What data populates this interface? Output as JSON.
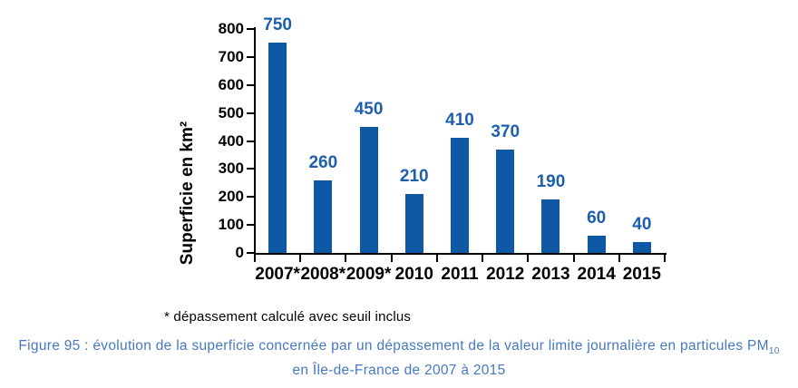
{
  "chart_data": {
    "type": "bar",
    "title": "",
    "categories": [
      "2007*",
      "2008*",
      "2009*",
      "2010",
      "2011",
      "2012",
      "2013",
      "2014",
      "2015"
    ],
    "values": [
      750,
      260,
      450,
      210,
      410,
      370,
      190,
      60,
      40
    ],
    "xlabel": "",
    "ylabel": "Superficie en km²",
    "ylim": [
      0,
      800
    ],
    "ytick_step": 100,
    "grid": false,
    "legend": false,
    "bar_color": "#0F58A6",
    "value_label_color": "#1D5FAE",
    "axis_color": "#000000"
  },
  "footnote": "* dépassement calculé avec seuil inclus",
  "caption": {
    "line1_text": "Figure 95 : évolution de la superficie concernée par un dépassement de la valeur limite journalière en particules PM",
    "line1_subscript": "10",
    "line2": "en Île-de-France de 2007 à 2015",
    "color": "#4679C0"
  }
}
